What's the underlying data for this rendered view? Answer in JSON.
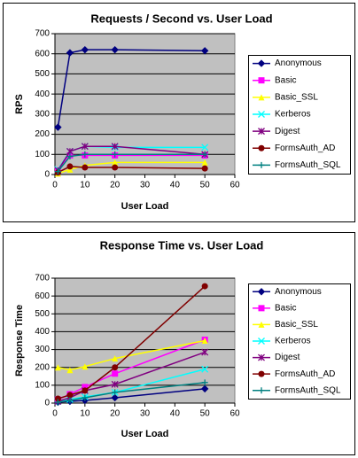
{
  "chart_data": [
    {
      "type": "line",
      "title": "Requests / Second  vs.  User Load",
      "x_label": "User Load",
      "y_label": "RPS",
      "x": [
        1,
        5,
        10,
        20,
        50
      ],
      "xlim": [
        0,
        60
      ],
      "xticks": [
        0,
        10,
        20,
        30,
        40,
        50,
        60
      ],
      "ylim": [
        0,
        700
      ],
      "yticks": [
        0,
        100,
        200,
        300,
        400,
        500,
        600,
        700
      ],
      "grid": true,
      "legend": "right",
      "series": [
        {
          "name": "Anonymous",
          "color": "#000080",
          "marker": "diamond",
          "values": [
            235,
            605,
            620,
            620,
            615
          ]
        },
        {
          "name": "Basic",
          "color": "#ff00ff",
          "marker": "square",
          "values": [
            20,
            95,
            95,
            95,
            95
          ]
        },
        {
          "name": "Basic_SSL",
          "color": "#ffff00",
          "marker": "triangle",
          "values": [
            5,
            25,
            45,
            60,
            60
          ]
        },
        {
          "name": "Kerberos",
          "color": "#00ffff",
          "marker": "x",
          "values": [
            25,
            115,
            140,
            135,
            135
          ]
        },
        {
          "name": "Digest",
          "color": "#800080",
          "marker": "star",
          "values": [
            20,
            115,
            140,
            140,
            100
          ]
        },
        {
          "name": "FormsAuth_AD",
          "color": "#800000",
          "marker": "circle",
          "values": [
            10,
            40,
            35,
            35,
            30
          ]
        },
        {
          "name": "FormsAuth_SQL",
          "color": "#008080",
          "marker": "plus",
          "values": [
            15,
            90,
            100,
            100,
            100
          ]
        }
      ]
    },
    {
      "type": "line",
      "title": "Response Time  vs.  User Load",
      "x_label": "User Load",
      "y_label": "Response Time",
      "x": [
        1,
        5,
        10,
        20,
        50
      ],
      "xlim": [
        0,
        60
      ],
      "xticks": [
        0,
        10,
        20,
        30,
        40,
        50,
        60
      ],
      "ylim": [
        0,
        700
      ],
      "yticks": [
        0,
        100,
        200,
        300,
        400,
        500,
        600,
        700
      ],
      "grid": true,
      "legend": "right",
      "series": [
        {
          "name": "Anonymous",
          "color": "#000080",
          "marker": "diamond",
          "values": [
            5,
            10,
            15,
            30,
            80
          ]
        },
        {
          "name": "Basic",
          "color": "#ff00ff",
          "marker": "square",
          "values": [
            20,
            50,
            90,
            165,
            355
          ]
        },
        {
          "name": "Basic_SSL",
          "color": "#ffff00",
          "marker": "triangle",
          "values": [
            200,
            185,
            205,
            250,
            350
          ]
        },
        {
          "name": "Kerberos",
          "color": "#00ffff",
          "marker": "x",
          "values": [
            10,
            20,
            35,
            60,
            190
          ]
        },
        {
          "name": "Digest",
          "color": "#800080",
          "marker": "star",
          "values": [
            10,
            30,
            70,
            105,
            285
          ]
        },
        {
          "name": "FormsAuth_AD",
          "color": "#800000",
          "marker": "circle",
          "values": [
            25,
            45,
            70,
            200,
            655
          ]
        },
        {
          "name": "FormsAuth_SQL",
          "color": "#008080",
          "marker": "plus",
          "values": [
            5,
            15,
            30,
            60,
            115
          ]
        }
      ]
    }
  ]
}
